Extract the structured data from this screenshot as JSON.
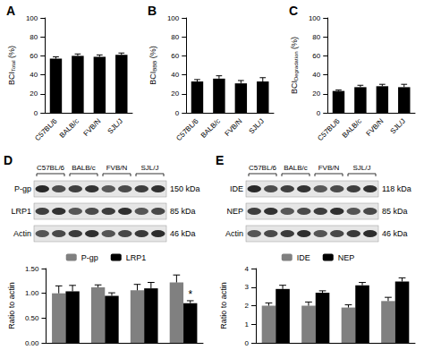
{
  "chart_data": [
    {
      "type": "bar",
      "title": "A",
      "y_label": "BCITotal (%)",
      "y_label_subscript": "Total",
      "categories": [
        "C57BL/6",
        "BALB/c",
        "FVB/N",
        "SJL/J"
      ],
      "values": [
        57,
        60,
        59,
        61
      ],
      "errors": [
        2,
        2,
        2,
        2
      ],
      "color": "#000000",
      "ylim": [
        0,
        100
      ],
      "yticks": [
        0,
        20,
        40,
        60,
        80,
        100
      ],
      "grid": false
    },
    {
      "type": "bar",
      "title": "B",
      "y_label": "BCIBBB (%)",
      "y_label_subscript": "BBB",
      "categories": [
        "C57BL/6",
        "BALB/c",
        "FVB/N",
        "SJL/J"
      ],
      "values": [
        33,
        36,
        31,
        33
      ],
      "errors": [
        2,
        3,
        3,
        4
      ],
      "color": "#000000",
      "ylim": [
        0,
        100
      ],
      "yticks": [
        0,
        20,
        40,
        60,
        80,
        100
      ],
      "grid": false
    },
    {
      "type": "bar",
      "title": "C",
      "y_label": "BCIDegradation (%)",
      "y_label_subscript": "Degradation",
      "categories": [
        "C57BL/6",
        "BALB/c",
        "FVB/N",
        "SJL/J"
      ],
      "values": [
        23,
        27,
        28,
        27
      ],
      "errors": [
        1,
        2,
        2,
        3
      ],
      "color": "#000000",
      "ylim": [
        0,
        100
      ],
      "yticks": [
        0,
        20,
        40,
        60,
        80,
        100
      ],
      "grid": false
    },
    {
      "type": "bar",
      "title": "D",
      "y_label": "Ratio to actin",
      "categories": [
        "C57BL/6",
        "BALB/c",
        "FVB/N",
        "SJL/J"
      ],
      "series": [
        {
          "name": "P-gp",
          "color": "#808080",
          "values": [
            1.0,
            1.12,
            1.06,
            1.22
          ],
          "errors": [
            0.15,
            0.05,
            0.12,
            0.15
          ]
        },
        {
          "name": "LRP1",
          "color": "#000000",
          "values": [
            1.04,
            0.95,
            1.1,
            0.8
          ],
          "errors": [
            0.12,
            0.06,
            0.12,
            0.05
          ]
        }
      ],
      "annotations": [
        {
          "text": "*",
          "category": "SJL/J",
          "series": "LRP1"
        }
      ],
      "ylim": [
        0,
        1.5
      ],
      "yticks": [
        {
          "value": 0,
          "label": "0.00"
        },
        {
          "value": 0.5,
          "label": "0.50"
        },
        {
          "value": 1,
          "label": "1.00"
        },
        {
          "value": 1.5,
          "label": "1.50"
        }
      ],
      "grid": false,
      "legend": "top",
      "tick_labels": "y",
      "blot": {
        "rows": [
          {
            "name": "P-gp",
            "size": "150 kDa"
          },
          {
            "name": "LRP1",
            "size": "85 kDa"
          },
          {
            "name": "Actin",
            "size": "46 kDa"
          }
        ]
      }
    },
    {
      "type": "bar",
      "title": "E",
      "y_label": "Ratio to actin",
      "categories": [
        "C57BL/6",
        "BALB/c",
        "FVB/N",
        "SJL/J"
      ],
      "series": [
        {
          "name": "IDE",
          "color": "#808080",
          "values": [
            2.0,
            2.0,
            1.9,
            2.25
          ],
          "errors": [
            0.15,
            0.2,
            0.15,
            0.2
          ]
        },
        {
          "name": "NEP",
          "color": "#000000",
          "values": [
            2.9,
            2.7,
            3.1,
            3.3
          ],
          "errors": [
            0.2,
            0.1,
            0.15,
            0.2
          ]
        }
      ],
      "ylim": [
        0,
        4
      ],
      "yticks": [
        0,
        1,
        2,
        3,
        4
      ],
      "grid": false,
      "legend": "top",
      "tick_labels": "y",
      "blot": {
        "rows": [
          {
            "name": "IDE",
            "size": "118 kDa"
          },
          {
            "name": "NEP",
            "size": "85 kDa"
          },
          {
            "name": "Actin",
            "size": "46 kDa"
          }
        ]
      }
    }
  ]
}
